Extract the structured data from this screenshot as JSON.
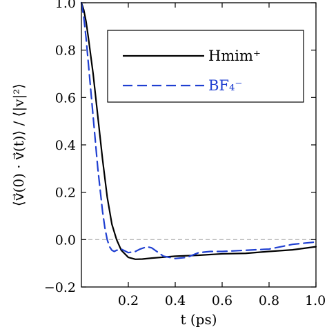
{
  "chart_data": {
    "type": "line",
    "xlabel": "t (ps)",
    "ylabel": "⟨v⃗(0) · v⃗(t)⟩ / ⟨|v|²⟩",
    "xlim": [
      0.0,
      1.0
    ],
    "ylim": [
      -0.2,
      1.0
    ],
    "x_ticks": [
      0.2,
      0.4,
      0.6,
      0.8,
      1.0
    ],
    "x_tick_labels": [
      "0.2",
      "0.4",
      "0.6",
      "0.8",
      "1.0"
    ],
    "y_ticks": [
      -0.2,
      0.0,
      0.2,
      0.4,
      0.6,
      0.8,
      1.0
    ],
    "y_tick_labels": [
      "−0.2",
      "0.0",
      "0.2",
      "0.4",
      "0.6",
      "0.8",
      "1.0"
    ],
    "zero_line": {
      "y": 0.0,
      "style": "dashed",
      "color": "#aaaaaa"
    },
    "grid": false,
    "legend_position": "top-right",
    "series": [
      {
        "name": "Hmim⁺",
        "color": "#000000",
        "style": "solid",
        "x": [
          0.0,
          0.01,
          0.02,
          0.03,
          0.05,
          0.07,
          0.09,
          0.11,
          0.13,
          0.15,
          0.17,
          0.2,
          0.23,
          0.26,
          0.3,
          0.35,
          0.4,
          0.5,
          0.6,
          0.7,
          0.8,
          0.9,
          1.0
        ],
        "y": [
          1.0,
          0.97,
          0.92,
          0.85,
          0.7,
          0.52,
          0.34,
          0.18,
          0.065,
          0.0,
          -0.045,
          -0.075,
          -0.083,
          -0.082,
          -0.078,
          -0.074,
          -0.07,
          -0.066,
          -0.06,
          -0.058,
          -0.05,
          -0.043,
          -0.03
        ]
      },
      {
        "name": "BF₄⁻",
        "color": "#1f3fd1",
        "style": "dashed",
        "x": [
          0.0,
          0.01,
          0.02,
          0.03,
          0.05,
          0.07,
          0.09,
          0.1,
          0.11,
          0.12,
          0.13,
          0.14,
          0.15,
          0.17,
          0.2,
          0.23,
          0.25,
          0.28,
          0.3,
          0.35,
          0.4,
          0.45,
          0.5,
          0.55,
          0.6,
          0.7,
          0.8,
          0.9,
          1.0
        ],
        "y": [
          1.0,
          0.94,
          0.85,
          0.74,
          0.52,
          0.3,
          0.12,
          0.05,
          0.0,
          -0.03,
          -0.045,
          -0.05,
          -0.045,
          -0.04,
          -0.055,
          -0.05,
          -0.04,
          -0.03,
          -0.035,
          -0.07,
          -0.08,
          -0.075,
          -0.055,
          -0.05,
          -0.05,
          -0.045,
          -0.04,
          -0.02,
          -0.01
        ]
      }
    ]
  }
}
